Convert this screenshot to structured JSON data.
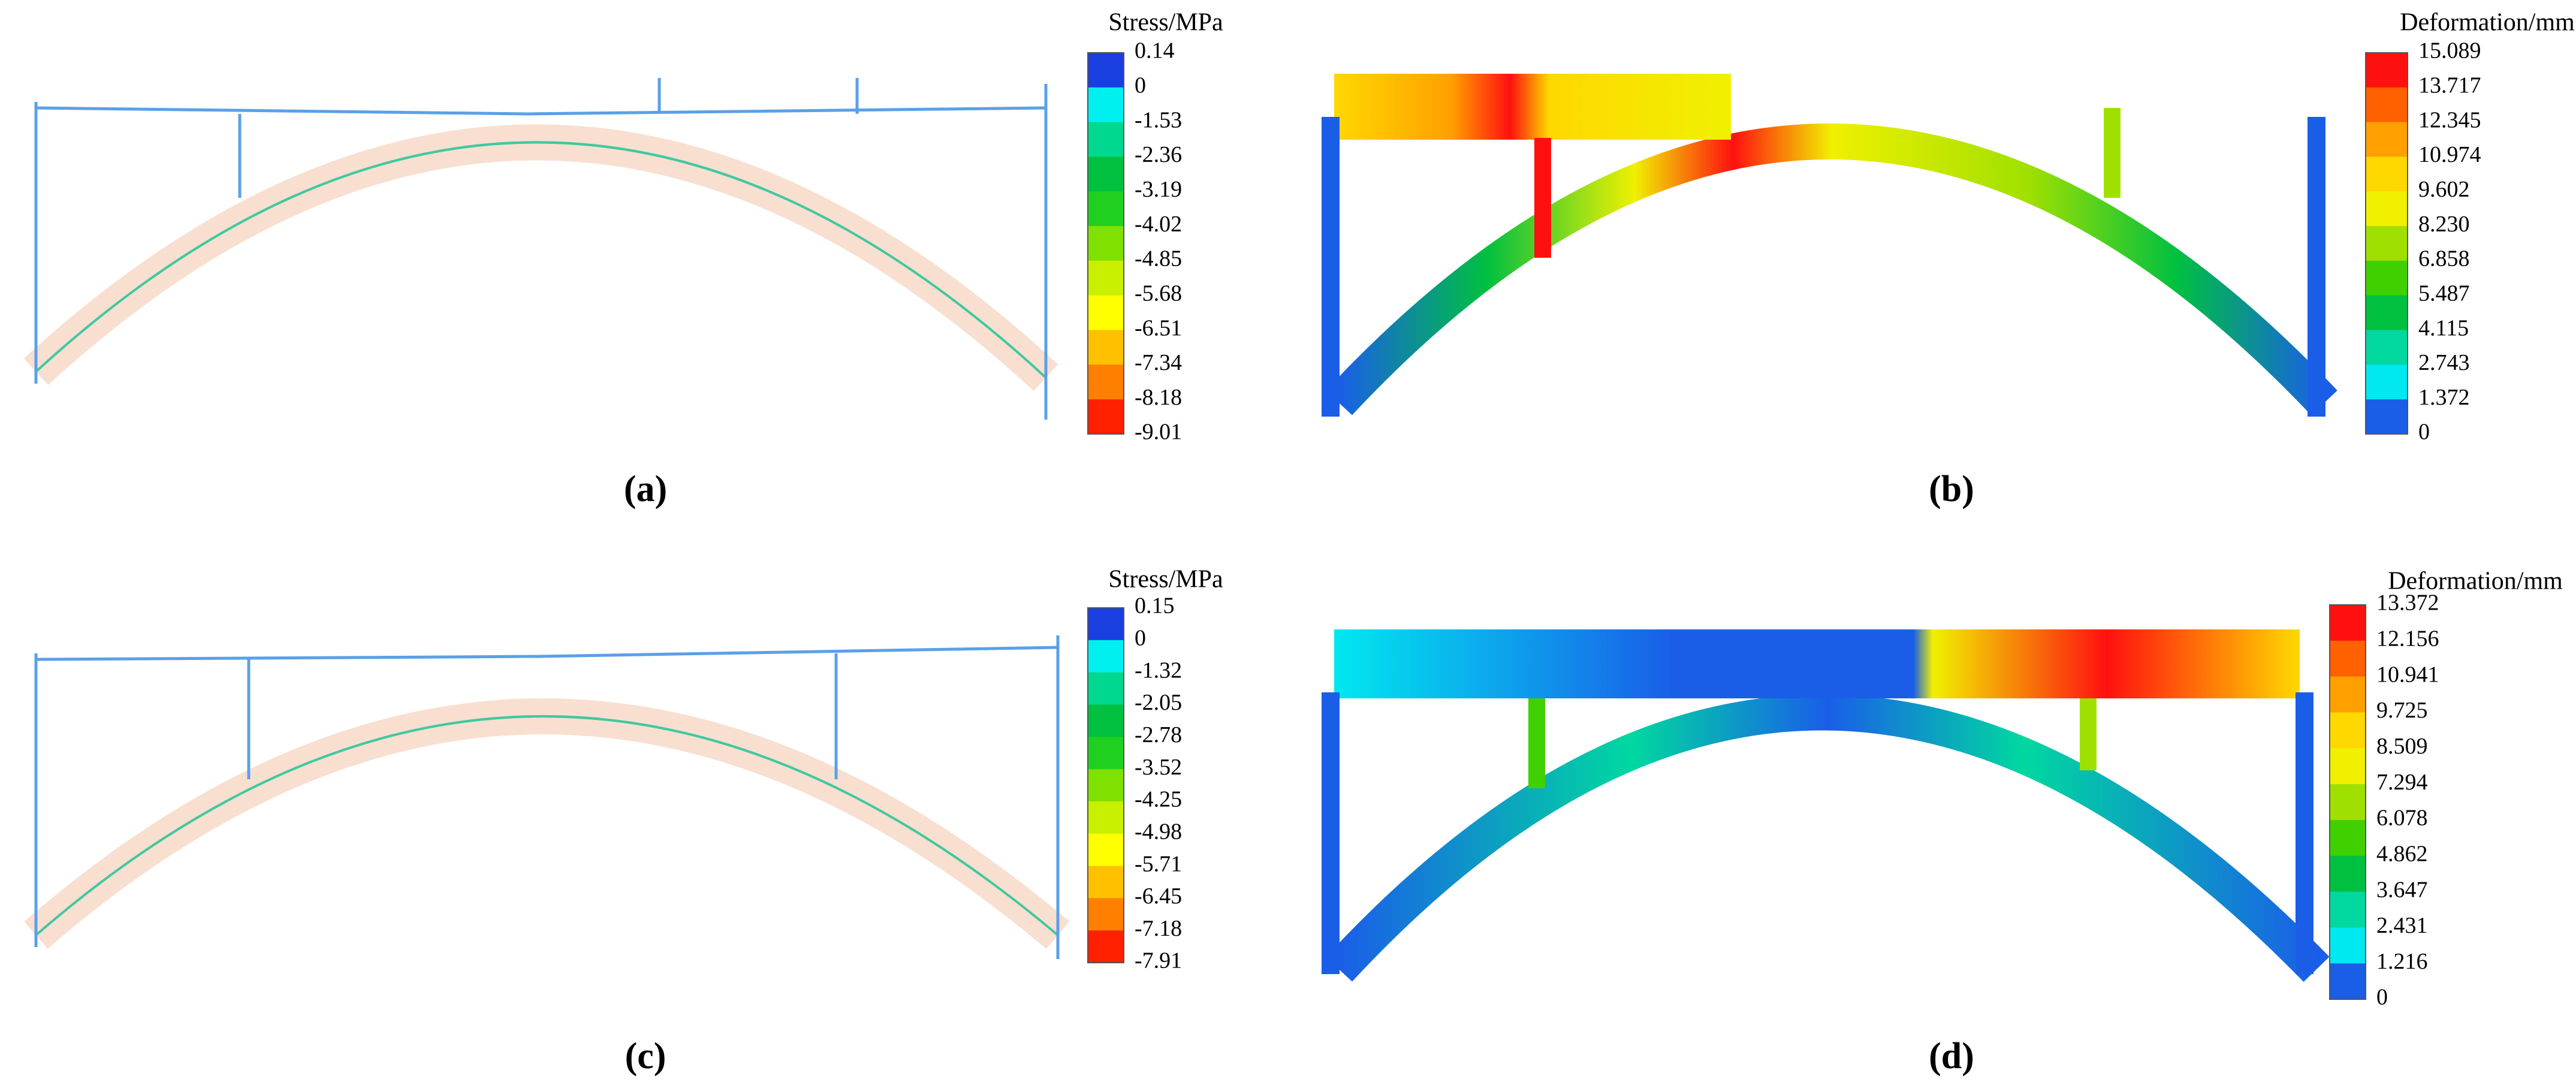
{
  "panels": [
    {
      "label": "(a)",
      "legend": {
        "title": "Stress/MPa",
        "labels": [
          "0.14",
          "0",
          "-1.53",
          "-2.36",
          "-3.19",
          "-4.02",
          "-4.85",
          "-5.68",
          "-6.51",
          "-7.34",
          "-8.18",
          "-9.01"
        ],
        "colors": [
          "#1a3ee0",
          "#00f0f0",
          "#00d890",
          "#00c040",
          "#20d020",
          "#80e000",
          "#c8f000",
          "#ffff00",
          "#ffc000",
          "#ff8000",
          "#ff2000"
        ]
      }
    },
    {
      "label": "(b)",
      "legend": {
        "title": "Deformation/mm",
        "labels": [
          "15.089",
          "13.717",
          "12.345",
          "10.974",
          "9.602",
          "8.230",
          "6.858",
          "5.487",
          "4.115",
          "2.743",
          "1.372",
          "0"
        ],
        "colors": [
          "#ff1010",
          "#ff6000",
          "#ffa000",
          "#ffd800",
          "#f0f000",
          "#a0e000",
          "#40d000",
          "#00c040",
          "#00d8a0",
          "#00e8f0",
          "#1a5ee8"
        ]
      }
    },
    {
      "label": "(c)",
      "legend": {
        "title": "Stress/MPa",
        "labels": [
          "0.15",
          "0",
          "-1.32",
          "-2.05",
          "-2.78",
          "-3.52",
          "-4.25",
          "-4.98",
          "-5.71",
          "-6.45",
          "-7.18",
          "-7.91"
        ],
        "colors": [
          "#1a3ee0",
          "#00f0f0",
          "#00d890",
          "#00c040",
          "#20d020",
          "#80e000",
          "#c8f000",
          "#ffff00",
          "#ffc000",
          "#ff8000",
          "#ff2000"
        ]
      }
    },
    {
      "label": "(d)",
      "legend": {
        "title": "Deformation/mm",
        "labels": [
          "13.372",
          "12.156",
          "10.941",
          "9.725",
          "8.509",
          "7.294",
          "6.078",
          "4.862",
          "3.647",
          "2.431",
          "1.216",
          "0"
        ],
        "colors": [
          "#ff1010",
          "#ff6000",
          "#ffa000",
          "#ffd800",
          "#f0f000",
          "#a0e000",
          "#40d000",
          "#00c040",
          "#00d8a0",
          "#00e8f0",
          "#1a5ee8"
        ]
      }
    }
  ]
}
